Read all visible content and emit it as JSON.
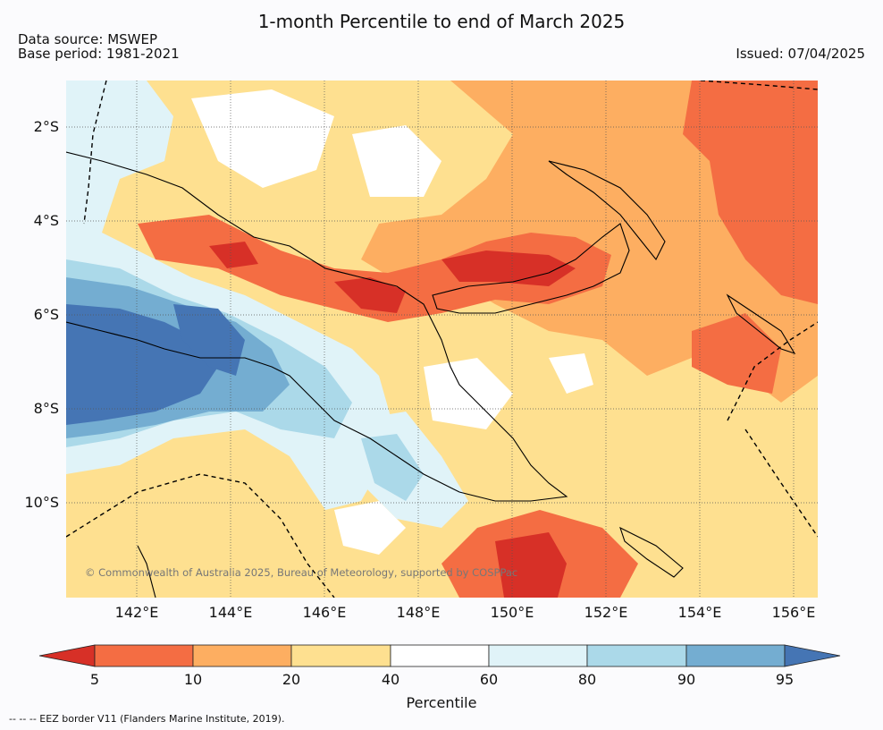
{
  "title": "1-month Percentile to end of March 2025",
  "data_source": "Data source: MSWEP",
  "base_period": "Base period: 1981-2021",
  "issued": "Issued: 07/04/2025",
  "copyright": "© Commonwealth of Australia 2025, Bureau of Meteorology, supported by COSPPac",
  "footnote": "--  --  -- EEZ border V11 (Flanders Marine Institute, 2019).",
  "map": {
    "lat_labels": [
      "2°S",
      "4°S",
      "6°S",
      "8°S",
      "10°S"
    ],
    "lon_labels": [
      "142°E",
      "144°E",
      "146°E",
      "148°E",
      "150°E",
      "152°E",
      "154°E",
      "156°E"
    ],
    "gridlines": true
  },
  "colorbar": {
    "label": "Percentile",
    "ticks": [
      "5",
      "10",
      "20",
      "40",
      "60",
      "80",
      "90",
      "95"
    ],
    "colors": {
      "below_5": "#d73027",
      "5_10": "#f46d43",
      "10_20": "#fdae61",
      "20_40": "#fee090",
      "40_60": "#ffffff",
      "60_80": "#e0f3f8",
      "80_90": "#abd9e9",
      "90_95": "#74add1",
      "above_95": "#4575b4"
    }
  }
}
